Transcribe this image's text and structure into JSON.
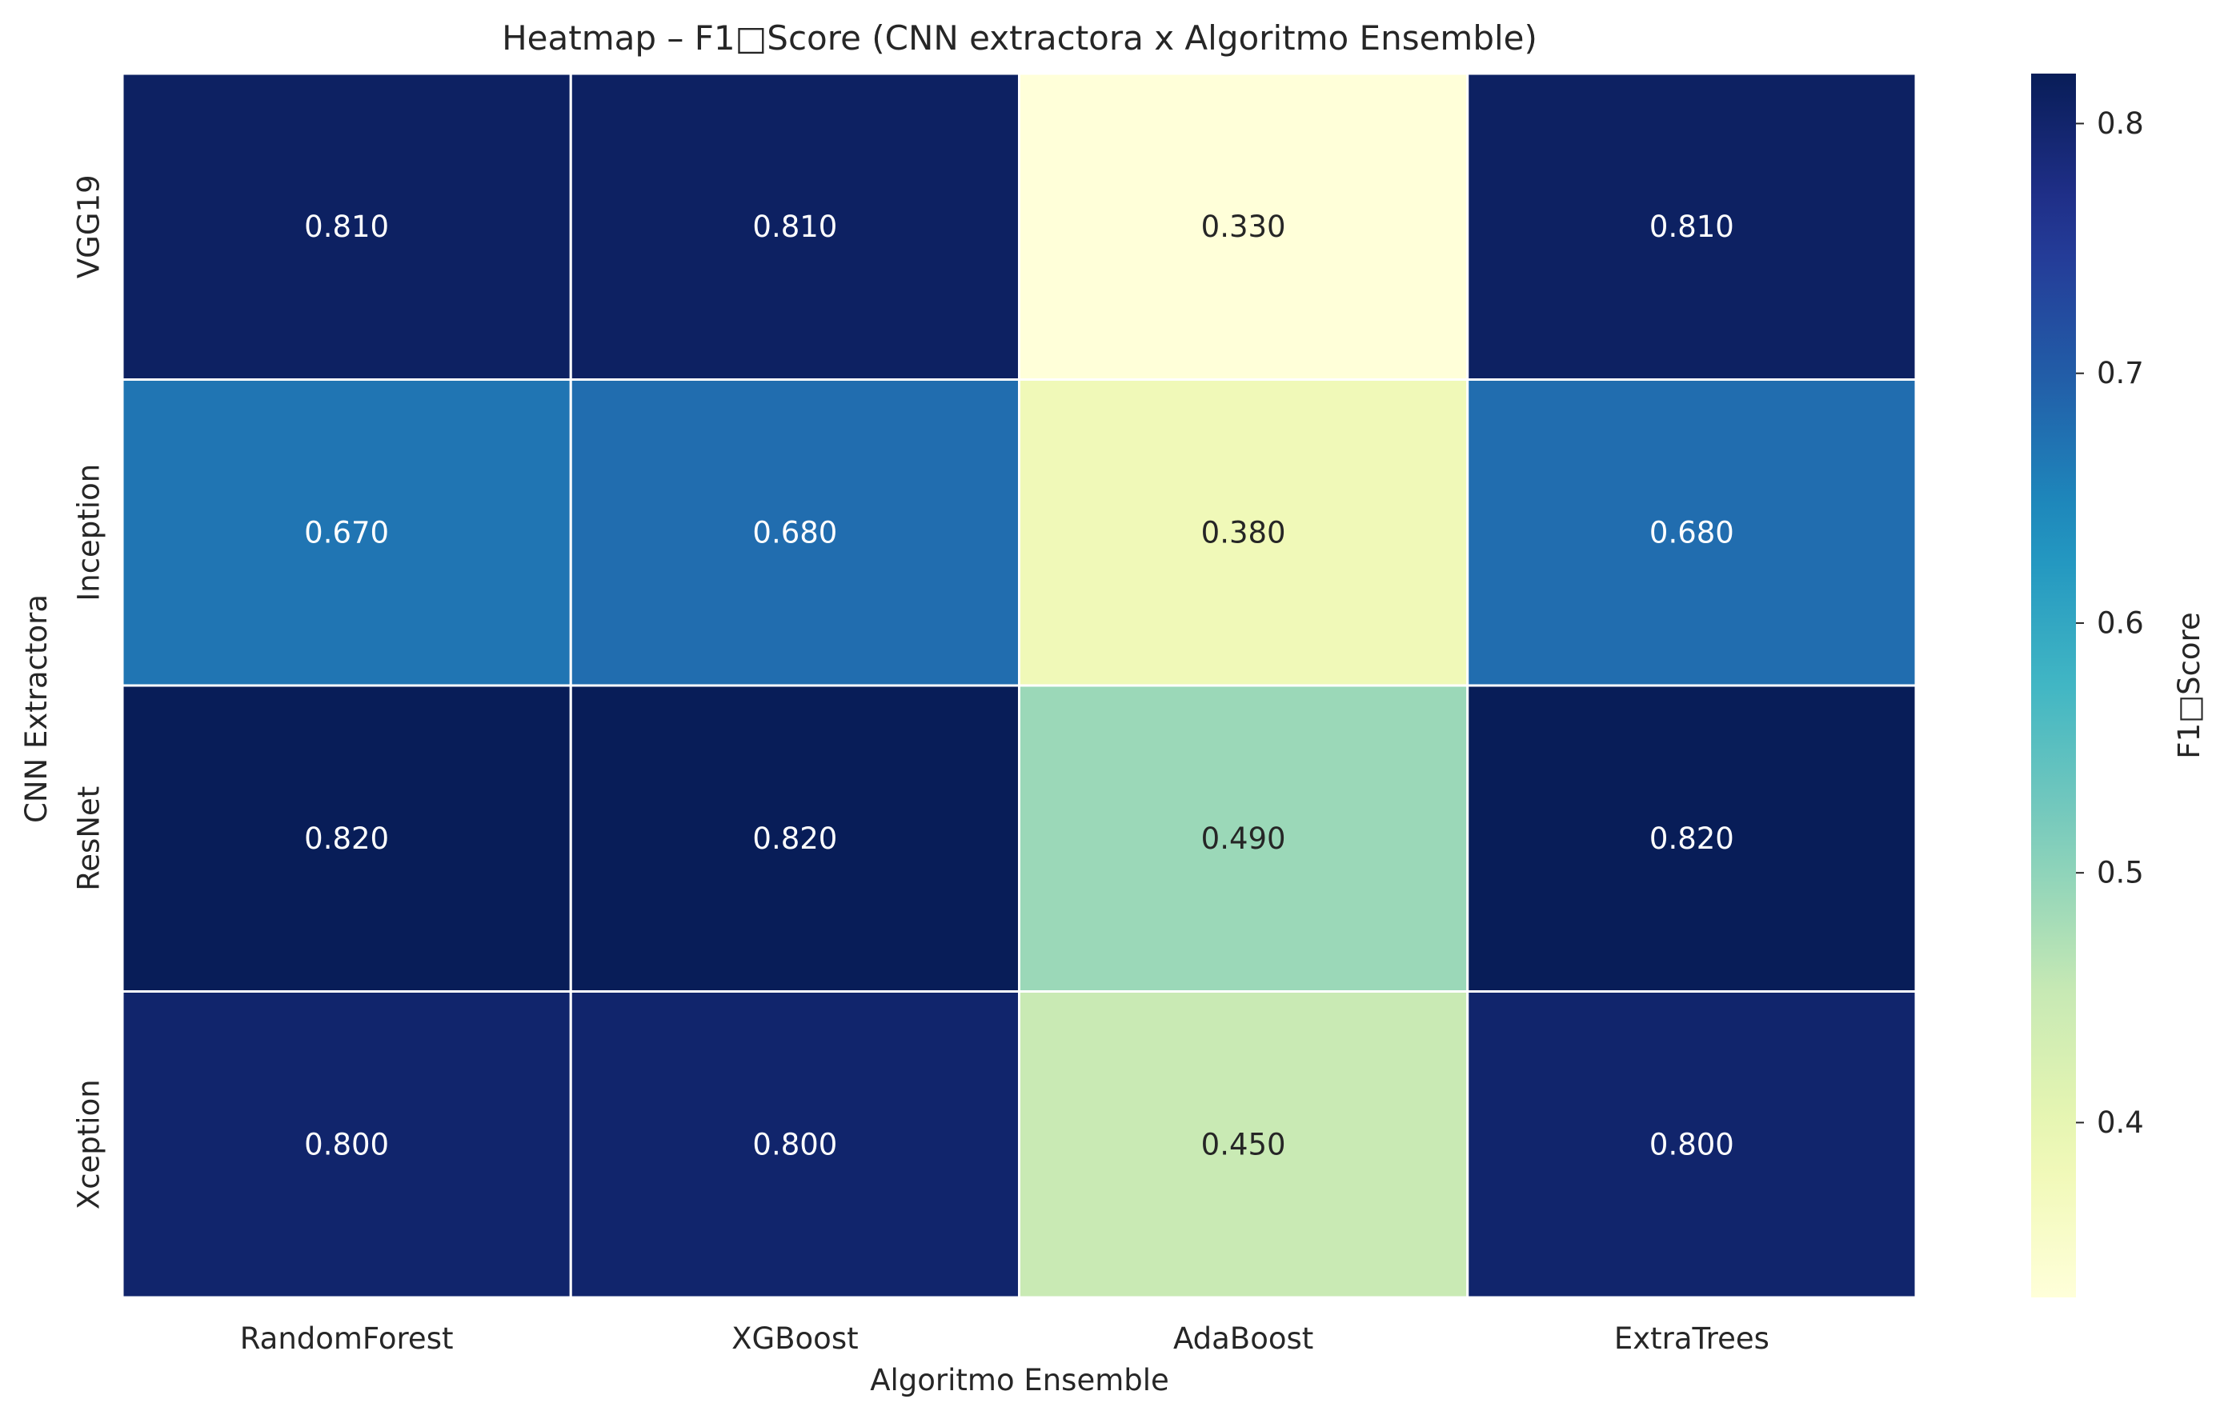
{
  "chart_data": {
    "type": "heatmap",
    "title": "Heatmap – F1□Score (CNN extractora x Algoritmo Ensemble)",
    "xlabel": "Algoritmo Ensemble",
    "ylabel": "CNN Extractora",
    "x_categories": [
      "RandomForest",
      "XGBoost",
      "AdaBoost",
      "ExtraTrees"
    ],
    "y_categories": [
      "VGG19",
      "Inception",
      "ResNet",
      "Xception"
    ],
    "values": [
      [
        0.81,
        0.81,
        0.33,
        0.81
      ],
      [
        0.67,
        0.68,
        0.38,
        0.68
      ],
      [
        0.82,
        0.82,
        0.49,
        0.82
      ],
      [
        0.8,
        0.8,
        0.45,
        0.8
      ]
    ],
    "value_labels": [
      [
        "0.810",
        "0.810",
        "0.330",
        "0.810"
      ],
      [
        "0.670",
        "0.680",
        "0.380",
        "0.680"
      ],
      [
        "0.820",
        "0.820",
        "0.490",
        "0.820"
      ],
      [
        "0.800",
        "0.800",
        "0.450",
        "0.800"
      ]
    ],
    "colorbar": {
      "label": "F1□Score",
      "vmin": 0.33,
      "vmax": 0.82,
      "ticks": [
        0.4,
        0.5,
        0.6,
        0.7,
        0.8
      ],
      "tick_labels": [
        "0.4",
        "0.5",
        "0.6",
        "0.7",
        "0.8"
      ],
      "colormap": "YlGnBu"
    },
    "grid": false,
    "cell_border_color": "#ffffff"
  }
}
